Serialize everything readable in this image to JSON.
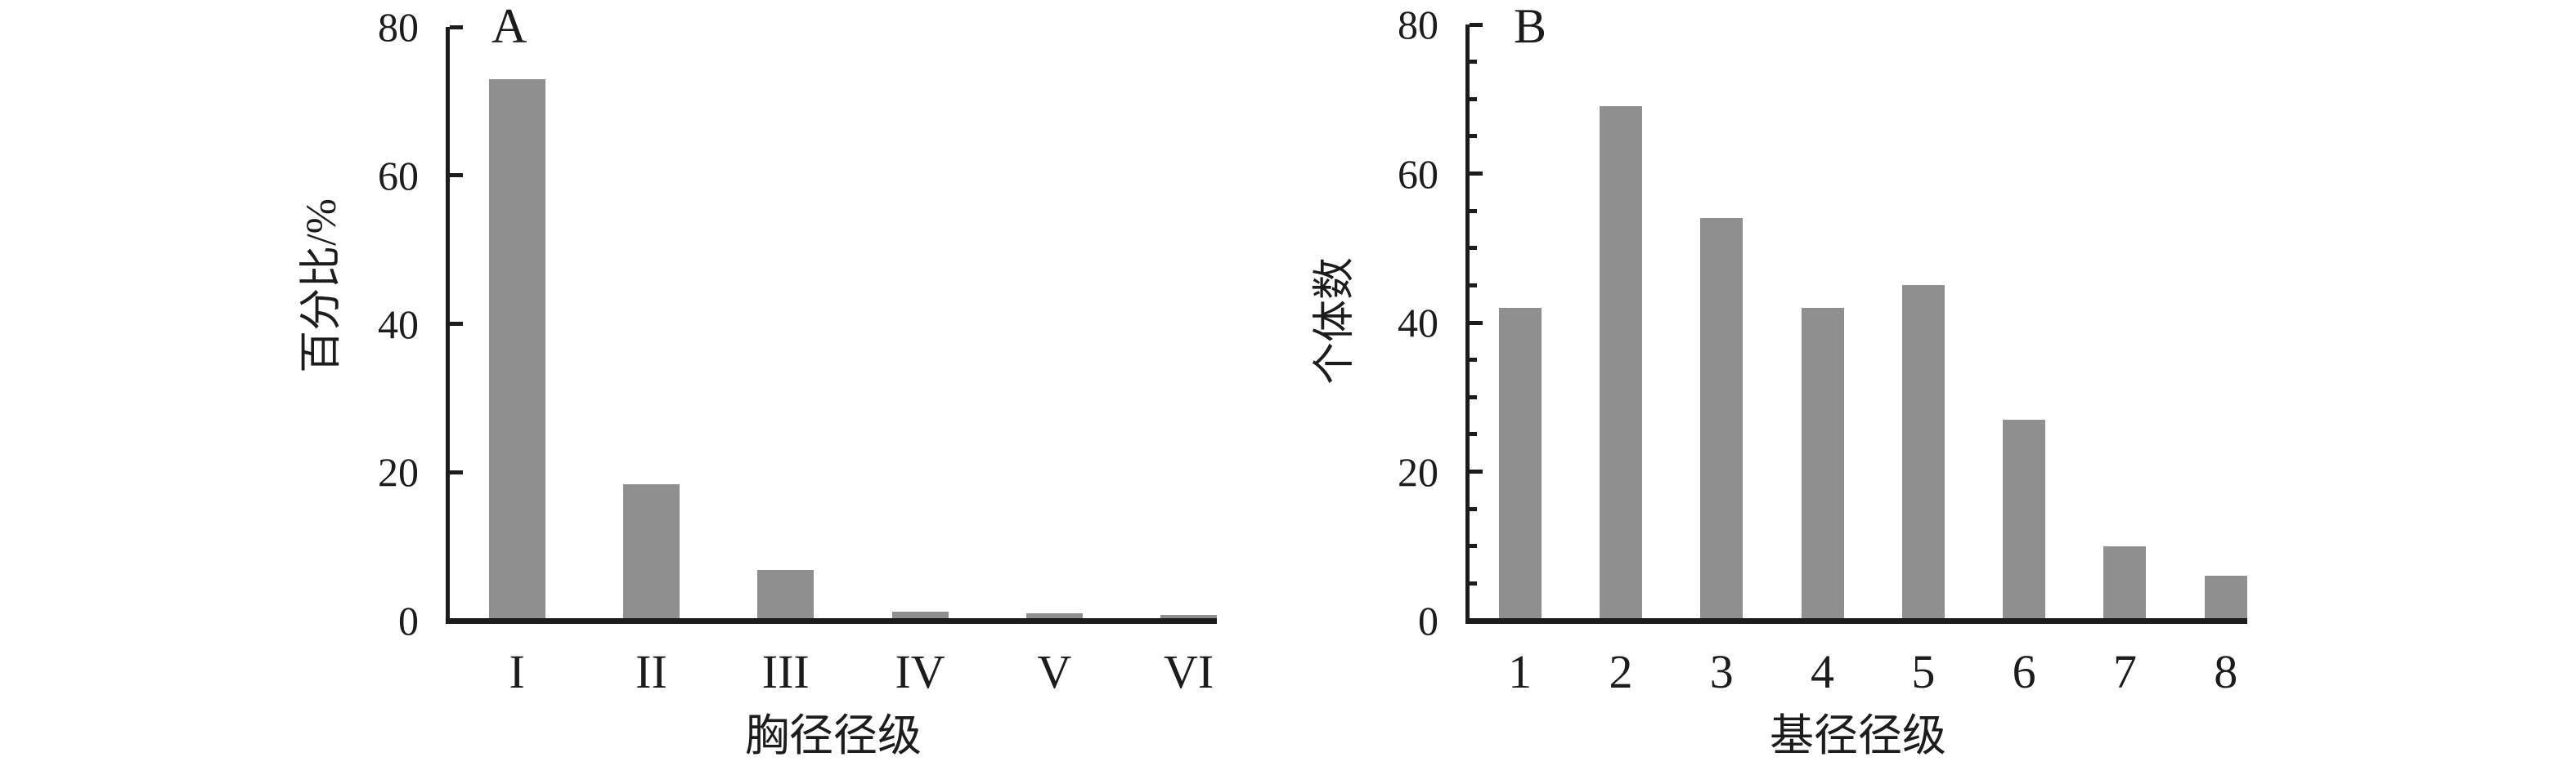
{
  "chart_data": [
    {
      "type": "bar",
      "panel_label": "A",
      "categories": [
        "I",
        "II",
        "III",
        "IV",
        "V",
        "VI"
      ],
      "values": [
        73,
        18.4,
        6.8,
        1.2,
        1,
        0.8
      ],
      "xlabel": "胸径径级",
      "ylabel": "百分比/%",
      "ylim": [
        0,
        80
      ],
      "yticks": [
        0,
        20,
        40,
        60,
        80
      ],
      "minor_tick_step": null,
      "grid": false,
      "legend": null,
      "bar_color": "#8f8f8f",
      "axis_color": "#1c1c1c"
    },
    {
      "type": "bar",
      "panel_label": "B",
      "categories": [
        "1",
        "2",
        "3",
        "4",
        "5",
        "6",
        "7",
        "8"
      ],
      "values": [
        42,
        69,
        54,
        42,
        45,
        27,
        10,
        6
      ],
      "xlabel": "基径径级",
      "ylabel": "个体数",
      "ylim": [
        0,
        80
      ],
      "yticks": [
        0,
        20,
        40,
        60,
        80
      ],
      "minor_tick_step": 5,
      "grid": false,
      "legend": null,
      "bar_color": "#8f8f8f",
      "axis_color": "#1c1c1c"
    }
  ]
}
